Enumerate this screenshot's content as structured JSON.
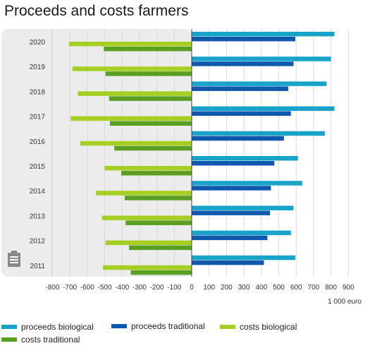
{
  "chart_data": {
    "type": "bar",
    "orientation": "horizontal",
    "title": "Proceeds and costs farmers",
    "unit": "1 000 euro",
    "categories": [
      "2020",
      "2019",
      "2018",
      "2017",
      "2016",
      "2015",
      "2014",
      "2013",
      "2012",
      "2011"
    ],
    "xlim": [
      -800,
      900
    ],
    "xticks": [
      -800,
      -700,
      -600,
      -500,
      -400,
      -300,
      -200,
      -100,
      0,
      100,
      200,
      300,
      400,
      500,
      600,
      700,
      800,
      900
    ],
    "grid": true,
    "legend_position": "bottom",
    "series": [
      {
        "name": "proceeds biological",
        "color": "#19a3c9",
        "values": [
          820,
          800,
          775,
          820,
          765,
          610,
          635,
          585,
          570,
          595
        ]
      },
      {
        "name": "proceeds traditional",
        "color": "#1058ae",
        "values": [
          595,
          585,
          555,
          570,
          530,
          475,
          455,
          450,
          435,
          415
        ]
      },
      {
        "name": "costs biological",
        "color": "#a6cf24",
        "values": [
          -705,
          -685,
          -655,
          -695,
          -640,
          -500,
          -550,
          -515,
          -495,
          -510
        ]
      },
      {
        "name": "costs traditional",
        "color": "#5a9e22",
        "values": [
          -505,
          -495,
          -475,
          -470,
          -445,
          -405,
          -385,
          -380,
          -360,
          -350
        ]
      }
    ]
  }
}
